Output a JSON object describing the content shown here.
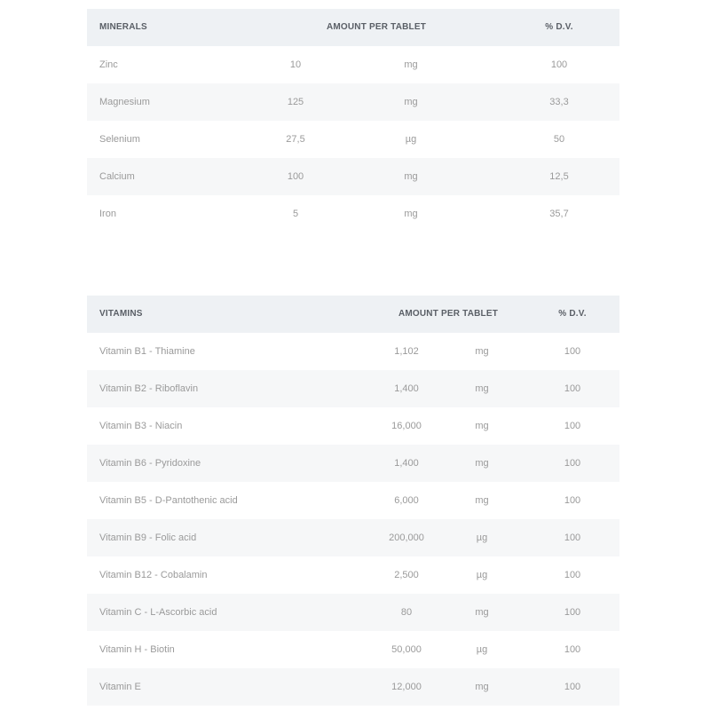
{
  "minerals": {
    "headers": {
      "name": "MINERALS",
      "amount": "AMOUNT PER TABLET",
      "dv": "% D.V."
    },
    "rows": [
      {
        "name": "Zinc",
        "amount": "10",
        "unit": "mg",
        "dv": "100"
      },
      {
        "name": "Magnesium",
        "amount": "125",
        "unit": "mg",
        "dv": "33,3"
      },
      {
        "name": "Selenium",
        "amount": "27,5",
        "unit": "µg",
        "dv": "50"
      },
      {
        "name": "Calcium",
        "amount": "100",
        "unit": "mg",
        "dv": "12,5"
      },
      {
        "name": "Iron",
        "amount": "5",
        "unit": "mg",
        "dv": "35,7"
      }
    ]
  },
  "vitamins": {
    "headers": {
      "name": "VITAMINS",
      "amount": "AMOUNT PER TABLET",
      "dv": "% D.V."
    },
    "rows": [
      {
        "name": "Vitamin B1 - Thiamine",
        "amount": "1,102",
        "unit": "mg",
        "dv": "100"
      },
      {
        "name": "Vitamin B2 - Riboflavin",
        "amount": "1,400",
        "unit": "mg",
        "dv": "100"
      },
      {
        "name": "Vitamin B3 - Niacin",
        "amount": "16,000",
        "unit": "mg",
        "dv": "100"
      },
      {
        "name": "Vitamin B6 - Pyridoxine",
        "amount": "1,400",
        "unit": "mg",
        "dv": "100"
      },
      {
        "name": "Vitamin B5 - D-Pantothenic acid",
        "amount": "6,000",
        "unit": "mg",
        "dv": "100"
      },
      {
        "name": "Vitamin B9 - Folic acid",
        "amount": "200,000",
        "unit": "µg",
        "dv": "100"
      },
      {
        "name": "Vitamin B12 - Cobalamin",
        "amount": "2,500",
        "unit": "µg",
        "dv": "100"
      },
      {
        "name": "Vitamin C - L-Ascorbic acid",
        "amount": "80",
        "unit": "mg",
        "dv": "100"
      },
      {
        "name": "Vitamin H - Biotin",
        "amount": "50,000",
        "unit": "µg",
        "dv": "100"
      },
      {
        "name": "Vitamin E",
        "amount": "12,000",
        "unit": "mg",
        "dv": "100"
      }
    ]
  }
}
